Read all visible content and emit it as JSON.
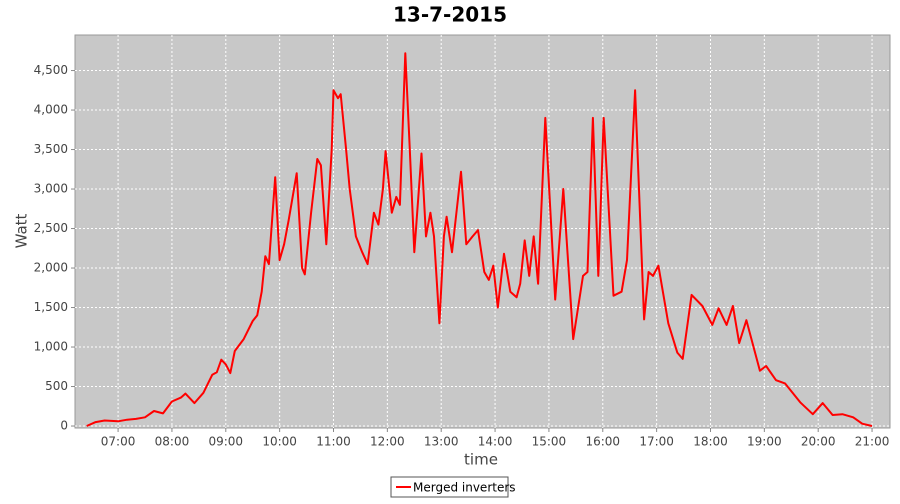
{
  "chart_data": {
    "type": "line",
    "title": "13-7-2015",
    "x_label": "time",
    "y_label": "Watt",
    "x": [
      "06:25",
      "06:35",
      "06:45",
      "07:00",
      "07:10",
      "07:20",
      "07:30",
      "07:40",
      "07:50",
      "08:00",
      "08:10",
      "08:15",
      "08:25",
      "08:35",
      "08:45",
      "08:50",
      "08:55",
      "09:00",
      "09:05",
      "09:10",
      "09:20",
      "09:30",
      "09:35",
      "09:40",
      "09:44",
      "09:48",
      "09:55",
      "10:00",
      "10:05",
      "10:10",
      "10:19",
      "10:25",
      "10:28",
      "10:35",
      "10:42",
      "10:46",
      "10:52",
      "10:58",
      "11:00",
      "11:05",
      "11:08",
      "11:14",
      "11:18",
      "11:25",
      "11:32",
      "11:38",
      "11:45",
      "11:50",
      "11:55",
      "11:58",
      "12:05",
      "12:10",
      "12:14",
      "12:20",
      "12:25",
      "12:30",
      "12:38",
      "12:43",
      "12:48",
      "12:52",
      "12:58",
      "13:03",
      "13:06",
      "13:12",
      "13:22",
      "13:28",
      "13:35",
      "13:41",
      "13:48",
      "13:53",
      "13:58",
      "14:03",
      "14:10",
      "14:17",
      "14:24",
      "14:28",
      "14:33",
      "14:38",
      "14:43",
      "14:48",
      "14:56",
      "15:07",
      "15:16",
      "15:27",
      "15:38",
      "15:43",
      "15:49",
      "15:55",
      "16:01",
      "16:12",
      "16:21",
      "16:27",
      "16:36",
      "16:46",
      "16:51",
      "16:56",
      "17:02",
      "17:13",
      "17:23",
      "17:29",
      "17:39",
      "17:51",
      "18:02",
      "18:09",
      "18:18",
      "18:25",
      "18:32",
      "18:40",
      "18:55",
      "19:02",
      "19:13",
      "19:23",
      "19:40",
      "19:54",
      "20:05",
      "20:16",
      "20:27",
      "20:39",
      "20:49",
      "21:00"
    ],
    "series": [
      {
        "name": "Merged inverters",
        "color": "#ff0000",
        "values": [
          0,
          50,
          70,
          60,
          80,
          90,
          110,
          190,
          160,
          310,
          360,
          410,
          290,
          420,
          650,
          680,
          840,
          780,
          670,
          950,
          1100,
          1330,
          1400,
          1700,
          2150,
          2050,
          3150,
          2100,
          2300,
          2600,
          3200,
          2000,
          1920,
          2700,
          3380,
          3300,
          2300,
          3500,
          4250,
          4150,
          4200,
          3500,
          3000,
          2400,
          2200,
          2050,
          2700,
          2550,
          3000,
          3480,
          2700,
          2900,
          2800,
          4720,
          3500,
          2200,
          3450,
          2400,
          2700,
          2400,
          1300,
          2400,
          2650,
          2200,
          3220,
          2300,
          2400,
          2480,
          1950,
          1850,
          2030,
          1500,
          2180,
          1700,
          1630,
          1800,
          2350,
          1900,
          2400,
          1800,
          3900,
          1600,
          3000,
          1100,
          1900,
          1950,
          3900,
          1900,
          3900,
          1650,
          1700,
          2100,
          4250,
          1350,
          1950,
          1900,
          2030,
          1300,
          930,
          850,
          1660,
          1520,
          1280,
          1490,
          1280,
          1520,
          1050,
          1340,
          700,
          760,
          580,
          540,
          300,
          150,
          290,
          140,
          150,
          110,
          30,
          0
        ]
      }
    ],
    "xlim": [
      "06:12",
      "21:20"
    ],
    "xticks": [
      "07:00",
      "08:00",
      "09:00",
      "10:00",
      "11:00",
      "12:00",
      "13:00",
      "14:00",
      "15:00",
      "16:00",
      "17:00",
      "18:00",
      "19:00",
      "20:00",
      "21:00"
    ],
    "ylim": [
      -25,
      4950
    ],
    "yticks": [
      0,
      {
        "value": 500,
        "label": "500"
      },
      {
        "value": 1000,
        "label": "1,000"
      },
      {
        "value": 1500,
        "label": "1,500"
      },
      {
        "value": 2000,
        "label": "2,000"
      },
      {
        "value": 2500,
        "label": "2,500"
      },
      {
        "value": 3000,
        "label": "3,000"
      },
      {
        "value": 3500,
        "label": "3,500"
      },
      {
        "value": 4000,
        "label": "4,000"
      },
      {
        "value": 4500,
        "label": "4,500"
      }
    ],
    "grid": true,
    "legend": "bottom"
  }
}
